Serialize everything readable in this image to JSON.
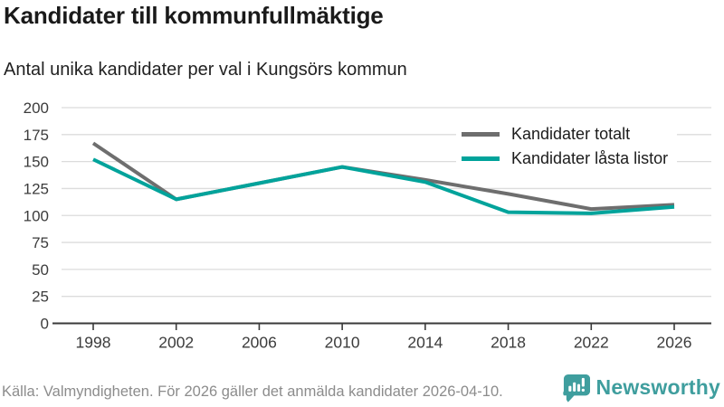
{
  "header": {
    "title": "Kandidater till kommunfullmäktige",
    "subtitle": "Antal unika kandidater per val i Kungsörs kommun"
  },
  "chart_data": {
    "type": "line",
    "title": "Kandidater till kommunfullmäktige",
    "subtitle": "Antal unika kandidater per val i Kungsörs kommun",
    "x": [
      1998,
      2002,
      2006,
      2010,
      2014,
      2018,
      2022,
      2026
    ],
    "x_tick_labels": [
      "1998",
      "2002",
      "2006",
      "2010",
      "2014",
      "2018",
      "2022",
      "2026"
    ],
    "series": [
      {
        "name": "Kandidater totalt",
        "color": "#6e6e6e",
        "values": [
          167,
          115,
          130,
          145,
          133,
          120,
          106,
          110
        ]
      },
      {
        "name": "Kandidater låsta listor",
        "color": "#00a39b",
        "values": [
          152,
          115,
          130,
          145,
          131,
          103,
          102,
          108
        ]
      }
    ],
    "ylim": [
      0,
      200
    ],
    "yticks": [
      0,
      25,
      50,
      75,
      100,
      125,
      150,
      175,
      200
    ],
    "ytick_labels": [
      "0",
      "25",
      "50",
      "75",
      "100",
      "125",
      "150",
      "175",
      "200"
    ],
    "grid": true,
    "legend_position": "top-right",
    "axis_colors": {
      "gridline": "#dcdcdc",
      "baseline": "#3a3a3a",
      "tick_text": "#3c3c3c"
    }
  },
  "footer": {
    "source": "Källa: Valmyndigheten. För 2026 gäller det anmälda kandidater 2026-04-10."
  },
  "branding": {
    "logo_text": "Newsworthy",
    "logo_color": "#3f9e9e",
    "icon": "bar-chart-speech-bubble-icon"
  }
}
